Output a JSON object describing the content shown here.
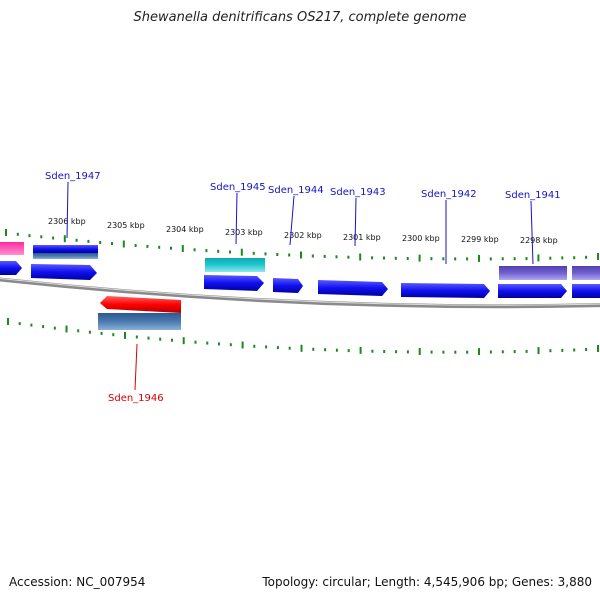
{
  "title": "Shewanella denitrificans OS217, complete genome",
  "footer": {
    "accession": "Accession: NC_007954",
    "topology": "Topology: circular; Length: 4,545,906 bp; Genes: 3,880"
  },
  "scale_labels": [
    "2306 kbp",
    "2305 kbp",
    "2304 kbp",
    "2303 kbp",
    "2302 kbp",
    "2301 kbp",
    "2300 kbp",
    "2299 kbp",
    "2298 kbp"
  ],
  "gene_labels": [
    {
      "text": "Sden_1947",
      "color": "#1414c8"
    },
    {
      "text": "Sden_1945",
      "color": "#1414c8"
    },
    {
      "text": "Sden_1944",
      "color": "#1414c8"
    },
    {
      "text": "Sden_1943",
      "color": "#1414c8"
    },
    {
      "text": "Sden_1942",
      "color": "#1414c8"
    },
    {
      "text": "Sden_1941",
      "color": "#1414c8"
    },
    {
      "text": "Sden_1946",
      "color": "#dd0000"
    }
  ],
  "colors": {
    "forward_gene": "#1010f0",
    "reverse_gene": "#ff0000",
    "cds_steel": "#4a7ab0",
    "cds_cyan": "#20c8d0",
    "cds_purple": "#7060d0",
    "cds_pink": "#ff2aa0",
    "backbone": "#8a8a8a",
    "ticks": "#1a8a1a"
  }
}
